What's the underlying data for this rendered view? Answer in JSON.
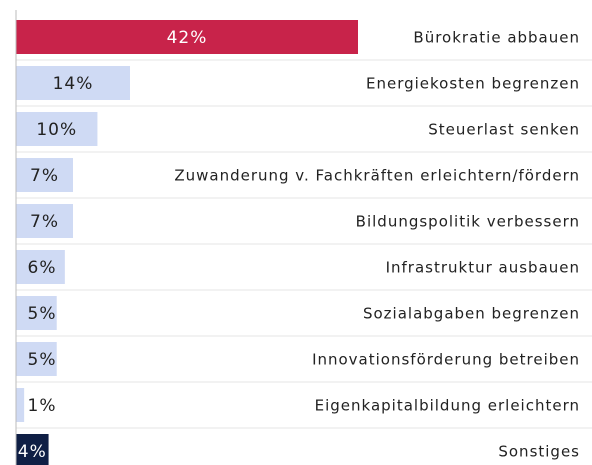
{
  "chart_data": {
    "type": "bar",
    "orientation": "horizontal",
    "categories": [
      "Bürokratie abbauen",
      "Energiekosten begrenzen",
      "Steuerlast senken",
      "Zuwanderung v. Fachkräften erleichtern/fördern",
      "Bildungspolitik verbessern",
      "Infrastruktur ausbauen",
      "Sozialabgaben begrenzen",
      "Innovationsförderung betreiben",
      "Eigenkapitalbildung erleichtern",
      "Sonstiges"
    ],
    "values": [
      42,
      14,
      10,
      7,
      7,
      6,
      5,
      5,
      1,
      4
    ],
    "value_labels": [
      "42%",
      "14%",
      "10%",
      "7%",
      "7%",
      "6%",
      "5%",
      "5%",
      "1%",
      "4%"
    ],
    "colors": [
      "#c8234a",
      "#cfdaf4",
      "#cfdaf4",
      "#cfdaf4",
      "#cfdaf4",
      "#cfdaf4",
      "#cfdaf4",
      "#cfdaf4",
      "#cfdaf4",
      "#0f1f45"
    ]
  }
}
